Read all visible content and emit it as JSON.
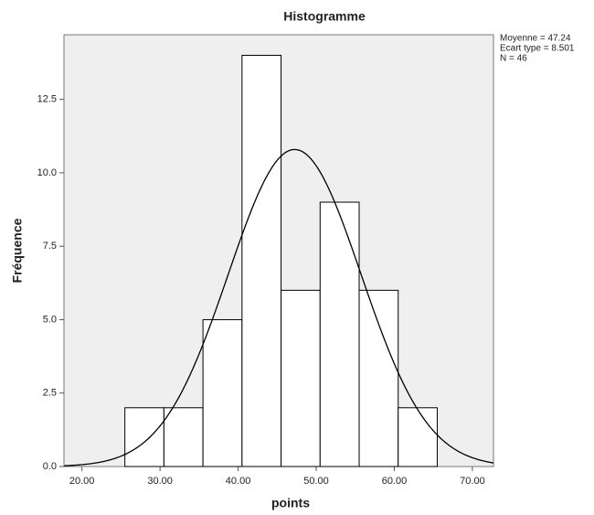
{
  "chart_data": {
    "type": "histogram",
    "title": "Histogramme",
    "x_label": "points",
    "y_label": "Fréquence",
    "bins": [
      25.5,
      30.5,
      35.5,
      40.5,
      45.5,
      50.5,
      55.5,
      60.5,
      65.5
    ],
    "values": [
      2,
      2,
      5,
      14,
      6,
      9,
      6,
      2
    ],
    "color": "#ffffff",
    "xlim": [
      17.7,
      72.7
    ],
    "xticks": [
      {
        "value": 20,
        "label": "20.00"
      },
      {
        "value": 30,
        "label": "30.00"
      },
      {
        "value": 40,
        "label": "40.00"
      },
      {
        "value": 50,
        "label": "50.00"
      },
      {
        "value": 60,
        "label": "60.00"
      },
      {
        "value": 70,
        "label": "70.00"
      }
    ],
    "ylim": [
      0,
      14.7
    ],
    "yticks": [
      {
        "value": 0,
        "label": "0.0"
      },
      2.5,
      {
        "value": 5,
        "label": "5.0"
      },
      7.5,
      {
        "value": 10,
        "label": "10.0"
      },
      12.5
    ],
    "stats": [
      {
        "value": 47.24,
        "label": "Moyenne = 47.24"
      },
      {
        "value": 8.501,
        "label": "Ecart type = 8.501"
      },
      {
        "value": 46,
        "label": "N = 46"
      }
    ]
  }
}
